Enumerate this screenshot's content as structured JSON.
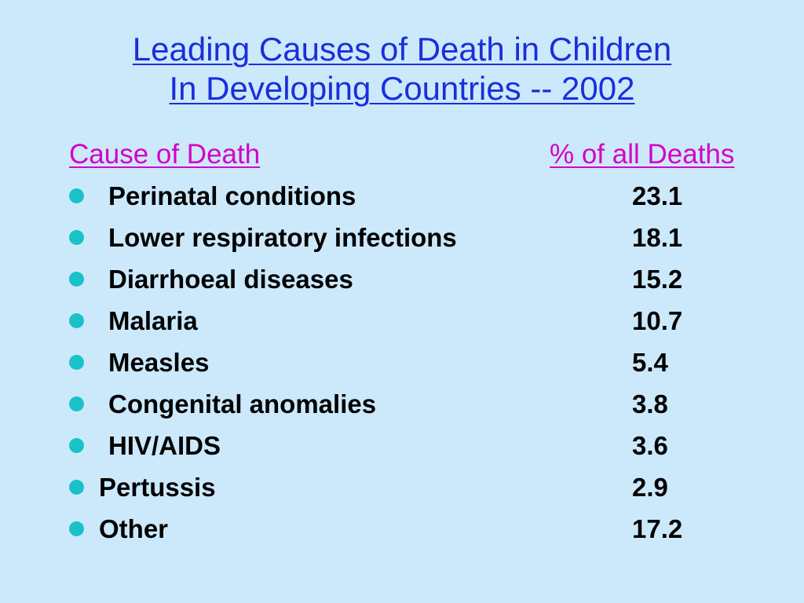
{
  "title": {
    "line1": "Leading Causes of Death in Children",
    "line2": "In Developing Countries -- 2002"
  },
  "table": {
    "headers": {
      "cause": "Cause of Death",
      "percent": "% of all Deaths"
    },
    "rows": [
      {
        "cause": "Perinatal conditions",
        "percent": "23.1"
      },
      {
        "cause": "Lower respiratory infections",
        "percent": "18.1"
      },
      {
        "cause": "Diarrhoeal diseases",
        "percent": "15.2"
      },
      {
        "cause": "Malaria",
        "percent": "10.7"
      },
      {
        "cause": "Measles",
        "percent": "5.4"
      },
      {
        "cause": "Congenital anomalies",
        "percent": "3.8"
      },
      {
        "cause": "HIV/AIDS",
        "percent": "3.6"
      },
      {
        "cause": "Pertussis",
        "percent": "2.9"
      },
      {
        "cause": "Other",
        "percent": "17.2"
      }
    ]
  },
  "colors": {
    "background": "#cce9fb",
    "title": "#1a2fd9",
    "header": "#d400c8",
    "bullet": "#19c2c8",
    "body_text": "#000000"
  },
  "icons": {
    "bullet": "filled-circle-bullet-icon"
  }
}
